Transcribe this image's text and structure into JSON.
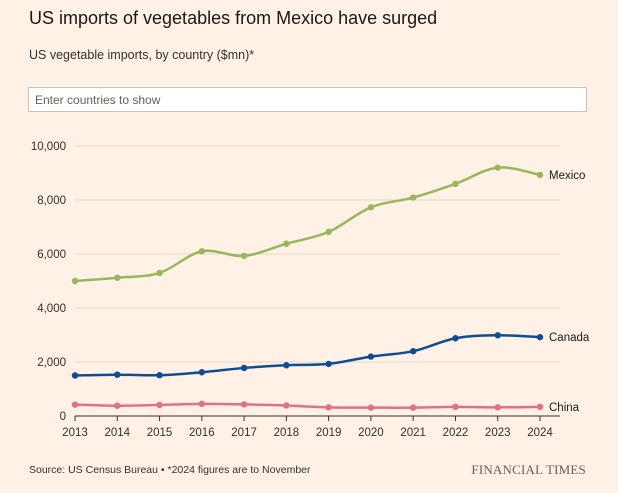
{
  "title": "US imports of vegetables from Mexico have surged",
  "subtitle": "US vegetable imports, by country ($mn)*",
  "search": {
    "placeholder": "Enter countries to show"
  },
  "footer": {
    "source": "Source: US Census Bureau • *2024 figures are to November",
    "brand": "FINANCIAL TIMES"
  },
  "colors": {
    "background": "#fff1e5",
    "grid": "#e3d9cf",
    "axis": "#33302e",
    "mexico": "#96b85a",
    "canada": "#0f4d92",
    "china": "#e0708a"
  },
  "chart_data": {
    "type": "line",
    "x": [
      2013,
      2014,
      2015,
      2016,
      2017,
      2018,
      2019,
      2020,
      2021,
      2022,
      2023,
      2024
    ],
    "x_tick_labels": [
      "2013",
      "2014",
      "2015",
      "2016",
      "2017",
      "2018",
      "2019",
      "2020",
      "2021",
      "2022",
      "2023",
      "2024"
    ],
    "y_ticks": [
      0,
      2000,
      4000,
      6000,
      8000,
      10000
    ],
    "y_tick_labels": [
      "0",
      "2,000",
      "4,000",
      "6,000",
      "8,000",
      "10,000"
    ],
    "ylim": [
      0,
      10000
    ],
    "grid": true,
    "legend": "inline-right",
    "series": [
      {
        "name": "Mexico",
        "color": "#96b85a",
        "values": [
          5000,
          5120,
          5300,
          6100,
          5930,
          6380,
          6820,
          7730,
          8090,
          8600,
          9200,
          8930
        ]
      },
      {
        "name": "Canada",
        "color": "#0f4d92",
        "values": [
          1500,
          1530,
          1510,
          1620,
          1780,
          1880,
          1930,
          2200,
          2400,
          2880,
          2990,
          2920
        ]
      },
      {
        "name": "China",
        "color": "#e0708a",
        "values": [
          420,
          380,
          410,
          450,
          430,
          390,
          320,
          310,
          310,
          340,
          320,
          340
        ]
      }
    ]
  }
}
